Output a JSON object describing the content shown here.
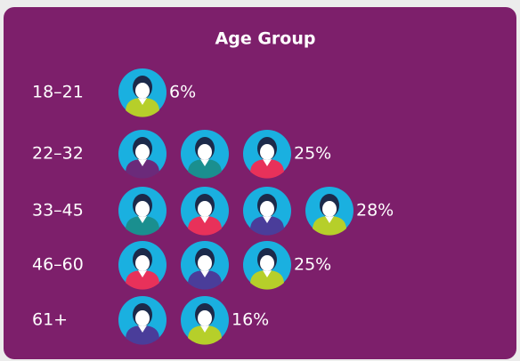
{
  "chart_data": {
    "type": "pictogram",
    "title": "Age Group",
    "categories": [
      "18–21",
      "22–32",
      "33–45",
      "46–60",
      "61+"
    ],
    "values": [
      6,
      25,
      28,
      25,
      16
    ],
    "value_labels": [
      "6%",
      "25%",
      "28%",
      "25%",
      "16%"
    ]
  }
}
